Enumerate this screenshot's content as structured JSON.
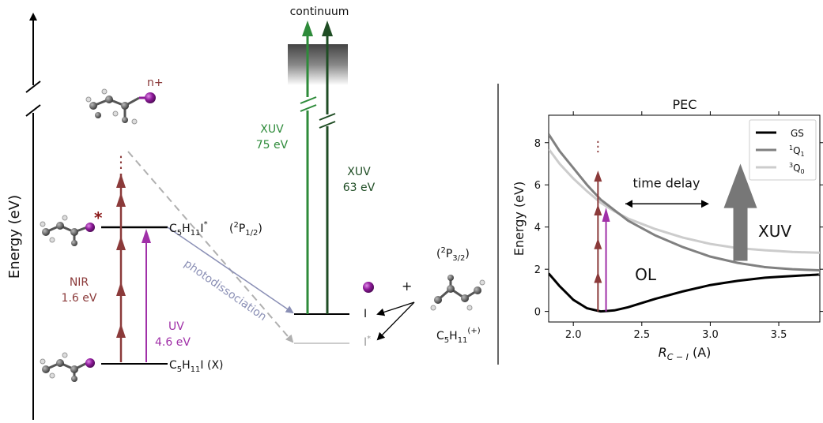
{
  "diagram": {
    "energy_axis_label": "Energy (eV)",
    "continuum_label": "continuum",
    "ion_label": "n+",
    "star_label": "*",
    "dots_label": "⋮",
    "nir_label": "NIR",
    "nir_energy": "1.6 eV",
    "uv_label": "UV",
    "uv_energy": "4.6 eV",
    "xuv75_label": "XUV",
    "xuv75_energy": "75 eV",
    "xuv63_label": "XUV",
    "xuv63_energy": "63 eV",
    "excited_state_label": "C5H11I*",
    "excited_term": "(2P1/2)",
    "ground_state_label": "C5H11I (X)",
    "photodissociation_label": "photodissociation",
    "iodine_label": "I",
    "iodine_star_label": "I*",
    "plus_label": "+",
    "term_32_label": "(2P3/2)",
    "fragment_label": "C5H11(+)",
    "colors": {
      "nir": "#8b3a3a",
      "uv": "#a030a8",
      "xuv75": "#2e8b3a",
      "xuv63": "#1f4d24",
      "dashed": "#b0b0b0",
      "photodiss_arrow": "#8a8fb5"
    }
  },
  "chart_data": {
    "type": "line",
    "title": "PEC",
    "xlabel": "R_{C-I} (A)",
    "ylabel": "Energy (eV)",
    "xlim": [
      1.82,
      3.8
    ],
    "ylim": [
      -0.5,
      9.3
    ],
    "xticks": [
      "2.0",
      "2.5",
      "3.0",
      "3.5"
    ],
    "yticks": [
      "0",
      "2",
      "4",
      "6",
      "8"
    ],
    "legend_position": "top-right",
    "series": [
      {
        "name": "GS",
        "color": "#000000",
        "x": [
          1.82,
          1.9,
          2.0,
          2.1,
          2.2,
          2.3,
          2.4,
          2.6,
          2.8,
          3.0,
          3.2,
          3.4,
          3.6,
          3.8
        ],
        "y": [
          1.8,
          1.2,
          0.55,
          0.15,
          0.0,
          0.05,
          0.2,
          0.6,
          0.95,
          1.25,
          1.45,
          1.6,
          1.68,
          1.75
        ]
      },
      {
        "name": "1Q1",
        "color": "#808080",
        "x": [
          1.82,
          1.9,
          2.0,
          2.1,
          2.2,
          2.3,
          2.4,
          2.6,
          2.8,
          3.0,
          3.2,
          3.4,
          3.6,
          3.8
        ],
        "y": [
          8.4,
          7.6,
          6.8,
          6.0,
          5.3,
          4.8,
          4.3,
          3.6,
          3.05,
          2.6,
          2.3,
          2.1,
          2.0,
          1.95
        ]
      },
      {
        "name": "3Q0",
        "color": "#cccccc",
        "x": [
          1.82,
          1.9,
          2.0,
          2.1,
          2.2,
          2.3,
          2.4,
          2.6,
          2.8,
          3.0,
          3.2,
          3.4,
          3.6,
          3.8
        ],
        "y": [
          7.7,
          7.0,
          6.3,
          5.7,
          5.15,
          4.75,
          4.4,
          3.9,
          3.5,
          3.2,
          3.0,
          2.9,
          2.82,
          2.78
        ]
      }
    ],
    "annotations": {
      "time_delay": "time delay",
      "xuv": "XUV",
      "ol": "OL",
      "dots": "⋮"
    }
  }
}
